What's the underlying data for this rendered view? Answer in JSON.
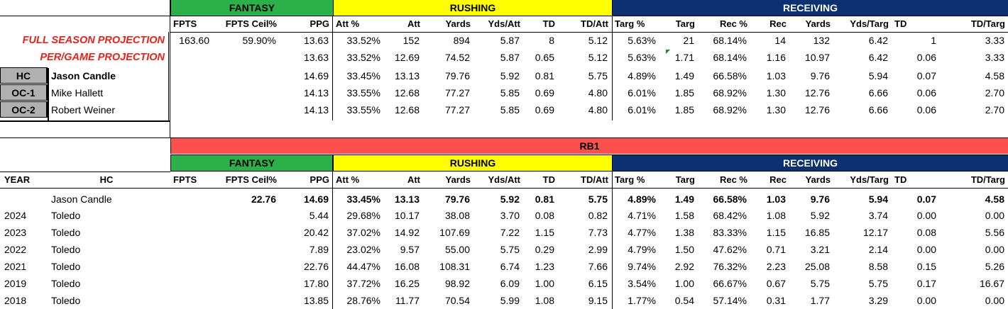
{
  "top": {
    "groups": [
      {
        "label": "FANTASY",
        "color": "#2bb04a",
        "text": "#000000"
      },
      {
        "label": "RUSHING",
        "color": "#fefe00",
        "text": "#000000"
      },
      {
        "label": "RECEIVING",
        "color": "#0c3070",
        "text": "#ffffff"
      }
    ],
    "columns": [
      "FPTS",
      "FPTS Ceil%",
      "PPG",
      "Att %",
      "Att",
      "Yards",
      "Yds/Att",
      "TD",
      "TD/Att",
      "Targ %",
      "Targ",
      "Rec %",
      "Rec",
      "Yards",
      "Yds/Targ",
      "TD",
      "TD/Targ"
    ],
    "projection_labels": [
      "FULL SEASON PROJECTION",
      "PER/GAME PROJECTION"
    ],
    "projection_rows": [
      [
        "163.60",
        "59.90%",
        "13.63",
        "33.52%",
        "152",
        "894",
        "5.87",
        "8",
        "5.12",
        "5.63%",
        "21",
        "68.14%",
        "14",
        "132",
        "6.42",
        "1",
        "3.33"
      ],
      [
        "",
        "",
        "13.63",
        "33.52%",
        "12.69",
        "74.52",
        "5.87",
        "0.65",
        "5.12",
        "5.63%",
        "1.71",
        "68.14%",
        "1.16",
        "10.97",
        "6.42",
        "0.06",
        "3.33"
      ]
    ],
    "staff_rows": [
      {
        "role": "HC",
        "name": "Jason Candle",
        "values": [
          "",
          "",
          "14.69",
          "33.45%",
          "13.13",
          "79.76",
          "5.92",
          "0.81",
          "5.75",
          "4.89%",
          "1.49",
          "66.58%",
          "1.03",
          "9.76",
          "5.94",
          "0.07",
          "4.58"
        ]
      },
      {
        "role": "OC-1",
        "name": "Mike Hallett",
        "values": [
          "",
          "",
          "14.13",
          "33.55%",
          "12.68",
          "77.27",
          "5.85",
          "0.69",
          "4.80",
          "6.01%",
          "1.85",
          "68.92%",
          "1.30",
          "12.76",
          "6.66",
          "0.06",
          "2.70"
        ]
      },
      {
        "role": "OC-2",
        "name": "Robert Weiner",
        "values": [
          "",
          "",
          "14.13",
          "33.55%",
          "12.68",
          "77.27",
          "5.85",
          "0.69",
          "4.80",
          "6.01%",
          "1.85",
          "68.92%",
          "1.30",
          "12.76",
          "6.66",
          "0.06",
          "2.70"
        ]
      }
    ]
  },
  "bottom": {
    "position_label": "RB1",
    "position_color": "#ff5050",
    "groups": [
      {
        "label": "FANTASY",
        "color": "#2bb04a",
        "text": "#000000"
      },
      {
        "label": "RUSHING",
        "color": "#fefe00",
        "text": "#000000"
      },
      {
        "label": "RECEIVING",
        "color": "#0c3070",
        "text": "#ffffff"
      }
    ],
    "year_header": "YEAR",
    "hc_header": "HC",
    "columns": [
      "FPTS",
      "FPTS Ceil%",
      "PPG",
      "Att %",
      "Att",
      "Yards",
      "Yds/Att",
      "TD",
      "TD/Att",
      "Targ %",
      "Targ",
      "Rec %",
      "Rec",
      "Yards",
      "Yds/Targ",
      "TD",
      "TD/Targ"
    ],
    "summary_row": {
      "year": "",
      "hc": "Jason Candle",
      "values": [
        "",
        "22.76",
        "14.69",
        "33.45%",
        "13.13",
        "79.76",
        "5.92",
        "0.81",
        "5.75",
        "4.89%",
        "1.49",
        "66.58%",
        "1.03",
        "9.76",
        "5.94",
        "0.07",
        "4.58"
      ]
    },
    "rows": [
      {
        "year": "2024",
        "hc": "Toledo",
        "values": [
          "",
          "",
          "5.44",
          "29.68%",
          "10.17",
          "38.08",
          "3.70",
          "0.08",
          "0.82",
          "4.71%",
          "1.58",
          "68.42%",
          "1.08",
          "5.92",
          "3.74",
          "0.00",
          "0.00"
        ]
      },
      {
        "year": "2023",
        "hc": "Toledo",
        "values": [
          "",
          "",
          "20.42",
          "37.02%",
          "14.92",
          "107.69",
          "7.22",
          "1.15",
          "7.73",
          "4.77%",
          "1.38",
          "83.33%",
          "1.15",
          "16.85",
          "12.17",
          "0.08",
          "5.56"
        ]
      },
      {
        "year": "2022",
        "hc": "Toledo",
        "values": [
          "",
          "",
          "7.89",
          "23.02%",
          "9.57",
          "55.00",
          "5.75",
          "0.29",
          "2.99",
          "4.79%",
          "1.50",
          "47.62%",
          "0.71",
          "3.21",
          "2.14",
          "0.00",
          "0.00"
        ]
      },
      {
        "year": "2021",
        "hc": "Toledo",
        "values": [
          "",
          "",
          "22.76",
          "44.47%",
          "16.08",
          "108.31",
          "6.74",
          "1.23",
          "7.66",
          "9.74%",
          "2.92",
          "76.32%",
          "2.23",
          "25.08",
          "8.58",
          "0.15",
          "5.26"
        ]
      },
      {
        "year": "2019",
        "hc": "Toledo",
        "values": [
          "",
          "",
          "17.80",
          "37.72%",
          "16.25",
          "98.92",
          "6.09",
          "1.00",
          "6.15",
          "3.54%",
          "1.00",
          "66.67%",
          "0.67",
          "5.75",
          "5.75",
          "0.17",
          "16.67"
        ]
      },
      {
        "year": "2018",
        "hc": "Toledo",
        "values": [
          "",
          "",
          "13.85",
          "28.76%",
          "11.77",
          "70.54",
          "5.99",
          "1.08",
          "9.15",
          "1.77%",
          "0.54",
          "57.14%",
          "0.31",
          "1.77",
          "3.29",
          "0.00",
          "0.00"
        ]
      }
    ]
  }
}
